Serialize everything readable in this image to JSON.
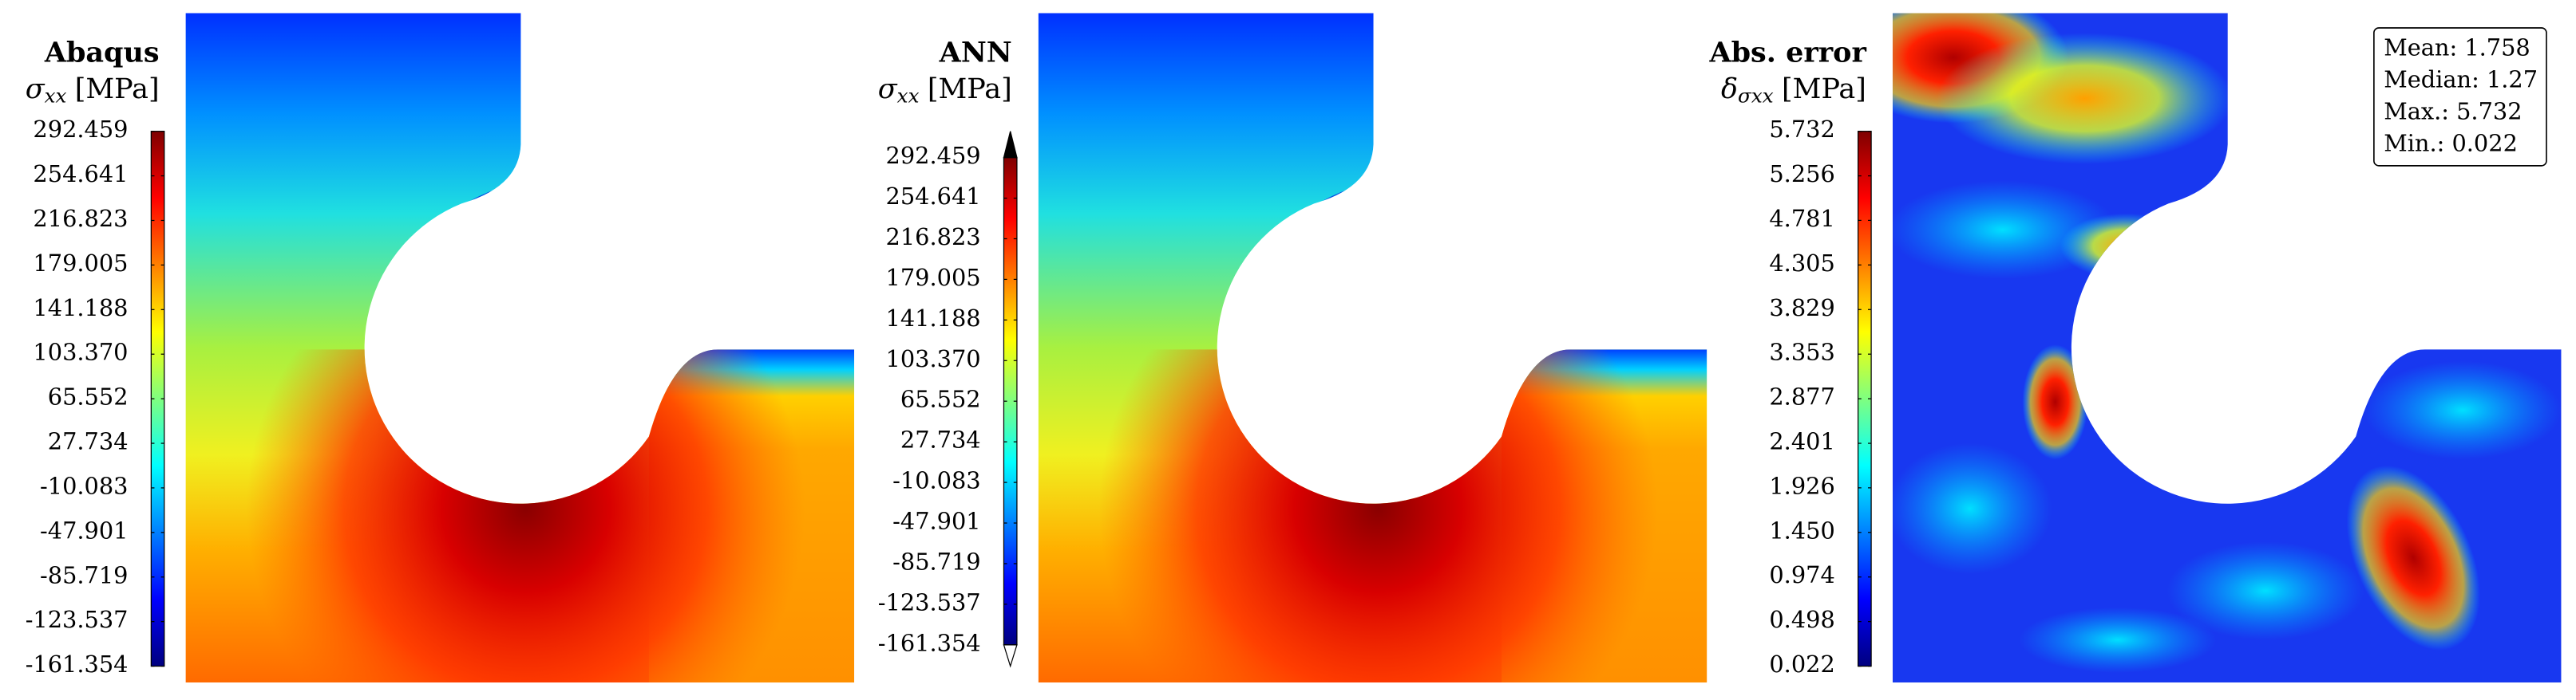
{
  "chart_data": [
    {
      "type": "contour",
      "title": "Abaqus",
      "label": {
        "symbol": "σ",
        "subscript": "xx",
        "unit": "[MPa]"
      },
      "colormap": "jet",
      "clim": [
        -161.354,
        292.459
      ],
      "cticks": [
        292.459,
        254.641,
        216.823,
        179.005,
        141.188,
        {
          "value": 103.37,
          "label": "103.370"
        },
        65.552,
        27.734,
        -10.083,
        -47.901,
        -85.719,
        -123.537,
        -161.354
      ]
    },
    {
      "type": "contour",
      "title": "ANN",
      "label": {
        "symbol": "σ",
        "subscript": "xx",
        "unit": "[MPa]"
      },
      "colormap": "jet",
      "extend": "both",
      "clim": [
        -161.354,
        292.459
      ],
      "cticks": [
        292.459,
        254.641,
        216.823,
        179.005,
        141.188,
        {
          "value": 103.37,
          "label": "103.370"
        },
        65.552,
        27.734,
        -10.083,
        -47.901,
        -85.719,
        -123.537,
        -161.354
      ]
    },
    {
      "type": "contour",
      "title": "Abs. error",
      "label": {
        "symbol": "δ",
        "subscript": "σxx",
        "unit": "[MPa]"
      },
      "colormap": "jet",
      "clim": [
        0.022,
        5.732
      ],
      "cticks": [
        5.732,
        5.256,
        4.781,
        4.305,
        3.829,
        3.353,
        2.877,
        2.401,
        1.926,
        {
          "value": 1.45,
          "label": "1.450"
        },
        0.974,
        0.498,
        0.022
      ],
      "stats": [
        "Mean: 1.758",
        "Median: 1.27",
        "Max.: 5.732",
        "Min.: 0.022"
      ]
    }
  ]
}
